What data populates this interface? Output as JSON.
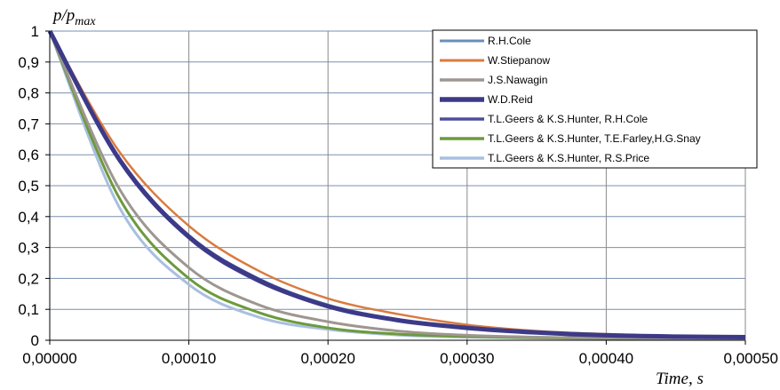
{
  "chart_data": {
    "type": "line",
    "ylabel": "p/p",
    "ylabel_sub": "max",
    "xlabel": "Time, s",
    "xlim": [
      0,
      0.0005
    ],
    "ylim": [
      0,
      1
    ],
    "x_ticks": [
      0,
      0.0001,
      0.0002,
      0.0003,
      0.0004,
      0.0005
    ],
    "x_tick_labels": [
      "0,00000",
      "0,00010",
      "0,00020",
      "0,00030",
      "0,00040",
      "0,00050"
    ],
    "y_ticks": [
      0,
      0.1,
      0.2,
      0.3,
      0.4,
      0.5,
      0.6,
      0.7,
      0.8,
      0.9,
      1
    ],
    "y_tick_labels": [
      "0",
      "0,1",
      "0,2",
      "0,3",
      "0,4",
      "0,5",
      "0,6",
      "0,7",
      "0,8",
      "0,9",
      "1"
    ],
    "grid": true,
    "legend_position": "top-right",
    "series": [
      {
        "name": "R.H.Cole",
        "color": "#6a8fb8",
        "x": [
          0,
          5e-05,
          0.0001,
          0.00015,
          0.0002,
          0.00025,
          0.0003,
          0.00035,
          0.0004,
          0.00045,
          0.0005
        ],
        "y": [
          1,
          0.585,
          0.34,
          0.2,
          0.115,
          0.068,
          0.04,
          0.023,
          0.016,
          0.012,
          0.01
        ]
      },
      {
        "name": "W.Stiepanow",
        "color": "#d97b3f",
        "x": [
          0,
          5e-05,
          0.0001,
          0.00015,
          0.0002,
          0.00025,
          0.0003,
          0.00035,
          0.0004,
          0.00045,
          0.0005
        ],
        "y": [
          1,
          0.61,
          0.37,
          0.225,
          0.135,
          0.085,
          0.05,
          0.03,
          0.02,
          0.013,
          0.01
        ]
      },
      {
        "name": "J.S.Nawagin",
        "color": "#9e9690",
        "x": [
          0,
          5e-05,
          0.0001,
          0.00015,
          0.0002,
          0.00025,
          0.0003,
          0.00035,
          0.0004,
          0.00045,
          0.0005
        ],
        "y": [
          1,
          0.49,
          0.235,
          0.115,
          0.06,
          0.03,
          0.016,
          0.01,
          0.007,
          0.006,
          0.005
        ]
      },
      {
        "name": "W.D.Reid",
        "color": "#3c3a88",
        "x": [
          0,
          5e-05,
          0.0001,
          0.00015,
          0.0002,
          0.00025,
          0.0003,
          0.00035,
          0.0004,
          0.00045,
          0.0005
        ],
        "y": [
          1,
          0.585,
          0.335,
          0.195,
          0.11,
          0.065,
          0.04,
          0.025,
          0.016,
          0.012,
          0.01
        ]
      },
      {
        "name": "T.L.Geers & K.S.Hunter, R.H.Cole",
        "color": "#4d4f9c",
        "x": [
          0,
          5e-05,
          0.0001,
          0.00015,
          0.0002,
          0.00025,
          0.0003,
          0.00035,
          0.0004,
          0.00045,
          0.0005
        ],
        "y": [
          1,
          0.58,
          0.33,
          0.19,
          0.11,
          0.063,
          0.038,
          0.024,
          0.016,
          0.012,
          0.01
        ]
      },
      {
        "name": "T.L.Geers & K.S.Hunter, T.E.Farley,H.G.Snay",
        "color": "#6c9a3c",
        "x": [
          0,
          5e-05,
          0.0001,
          0.00015,
          0.0002,
          0.00025,
          0.0003,
          0.00035,
          0.0004,
          0.00045,
          0.0005
        ],
        "y": [
          1,
          0.46,
          0.2,
          0.09,
          0.04,
          0.02,
          0.012,
          0.008,
          0.006,
          0.005,
          0.005
        ]
      },
      {
        "name": "T.L.Geers & K.S.Hunter, R.S.Price",
        "color": "#a9bfe0",
        "x": [
          0,
          5e-05,
          0.0001,
          0.00015,
          0.0002,
          0.00025,
          0.0003,
          0.00035,
          0.0004,
          0.00045,
          0.0005
        ],
        "y": [
          1,
          0.43,
          0.18,
          0.075,
          0.035,
          0.017,
          0.01,
          0.007,
          0.005,
          0.005,
          0.005
        ]
      }
    ]
  }
}
